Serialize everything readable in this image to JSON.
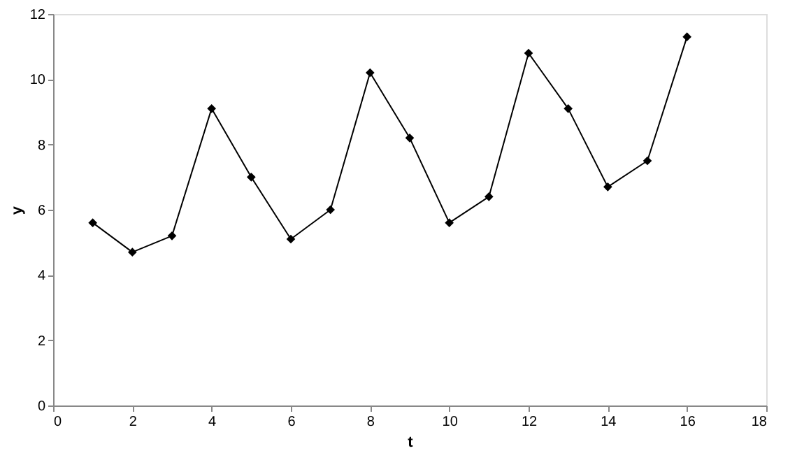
{
  "chart_data": {
    "type": "line",
    "xlabel": "t",
    "ylabel": "y",
    "x": [
      1,
      2,
      3,
      4,
      5,
      6,
      7,
      8,
      9,
      10,
      11,
      12,
      13,
      14,
      15,
      16
    ],
    "series": [
      {
        "color": "#000000",
        "values": [
          5.6,
          4.7,
          5.2,
          9.1,
          7.0,
          5.1,
          6.0,
          10.2,
          8.2,
          5.6,
          6.4,
          10.8,
          9.1,
          6.7,
          7.5,
          11.3
        ]
      }
    ],
    "xlim": [
      0,
      18
    ],
    "xticks": [
      0,
      2,
      4,
      6,
      8,
      10,
      12,
      14,
      16,
      18
    ],
    "ylim": [
      0,
      12
    ],
    "yticks": [
      0,
      2,
      4,
      6,
      8,
      10,
      12
    ],
    "grid": false,
    "marker": "diamond",
    "line_style": "solid"
  }
}
